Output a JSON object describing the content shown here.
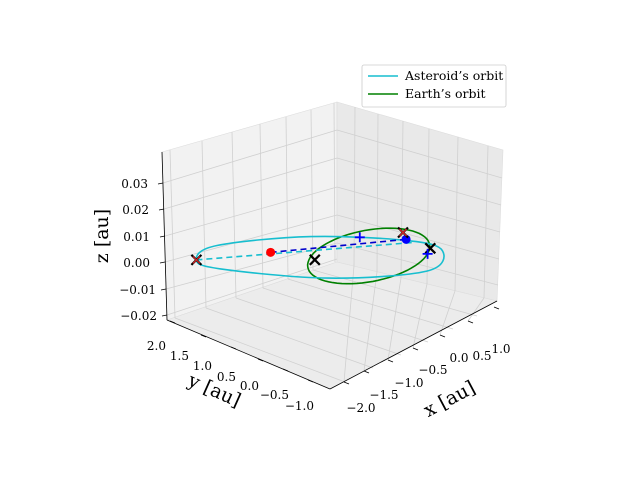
{
  "chart_data": {
    "type": "line",
    "projection": "3d",
    "title": "",
    "axes": {
      "x": {
        "label": "x [au]",
        "ticks": [
          "−2.0",
          "−1.5",
          "−1.0",
          "−0.5",
          "0.0",
          "0.5",
          "1.0"
        ],
        "range": [
          -2.0,
          1.2
        ]
      },
      "y": {
        "label": "y [au]",
        "ticks": [
          "−1.0",
          "−0.5",
          "0.0",
          "0.5",
          "1.0",
          "1.5",
          "2.0"
        ],
        "range": [
          -1.2,
          2.0
        ]
      },
      "z": {
        "label": "z [au]",
        "ticks": [
          "−0.02",
          "−0.01",
          "0.00",
          "0.01",
          "0.02",
          "0.03"
        ],
        "range": [
          -0.02,
          0.035
        ]
      }
    },
    "grid": true,
    "legend": {
      "placement": "top-right",
      "entries": [
        "Asteroid’s orbit",
        "Earth’s orbit"
      ]
    },
    "series": [
      {
        "name": "Asteroid’s orbit",
        "color": "#17becf",
        "style": "solid ellipse",
        "points": [
          [
            -2.0,
            1.7,
            0.03
          ],
          [
            -1.3,
            2.0,
            0.02
          ],
          [
            0.0,
            1.4,
            0.005
          ],
          [
            0.9,
            0.3,
            -0.003
          ],
          [
            1.0,
            -0.3,
            -0.005
          ],
          [
            0.4,
            -0.6,
            -0.005
          ],
          [
            -0.8,
            0.2,
            0.005
          ],
          [
            -1.9,
            1.3,
            0.025
          ]
        ]
      },
      {
        "name": "Earth’s orbit",
        "color": "#008000",
        "style": "solid circle",
        "radius_au": 1.0,
        "z": 0.0
      },
      {
        "name": "line of nodes",
        "color": "#17becf",
        "style": "dashed",
        "points": [
          [
            -2.0,
            1.7,
            0.03
          ],
          [
            0.9,
            0.2,
            -0.003
          ]
        ]
      },
      {
        "name": "asteroid–earth connection",
        "color": "#0000cc",
        "style": "dashed",
        "points": [
          [
            -0.9,
            1.3,
            0.015
          ],
          [
            0.85,
            0.3,
            0.0
          ]
        ]
      }
    ],
    "markers": [
      {
        "type": "point",
        "color": "#ff0000",
        "at": [
          -0.9,
          1.3,
          0.015
        ]
      },
      {
        "type": "point",
        "color": "#0000ff",
        "at": [
          0.85,
          0.3,
          0.0
        ]
      },
      {
        "type": "x-cross",
        "color": "#000000",
        "at": [
          -2.0,
          1.7,
          0.03
        ]
      },
      {
        "type": "x-cross",
        "color": "#000000",
        "at": [
          -0.4,
          0.9,
          0.0
        ]
      },
      {
        "type": "x-cross",
        "color": "#000000",
        "at": [
          0.95,
          -0.1,
          -0.005
        ]
      },
      {
        "type": "x-cross",
        "color": "#000000",
        "at": [
          0.98,
          0.5,
          0.0
        ]
      },
      {
        "type": "red-x",
        "color": "#d62728",
        "at": [
          -2.0,
          1.7,
          0.03
        ]
      },
      {
        "type": "red-x",
        "color": "#d62728",
        "at": [
          0.98,
          0.5,
          0.0
        ]
      },
      {
        "type": "plus",
        "color": "#0000ff",
        "at": [
          0.5,
          0.9,
          0.0
        ]
      },
      {
        "type": "plus",
        "color": "#0000ff",
        "at": [
          0.8,
          -0.2,
          -0.005
        ]
      }
    ]
  }
}
